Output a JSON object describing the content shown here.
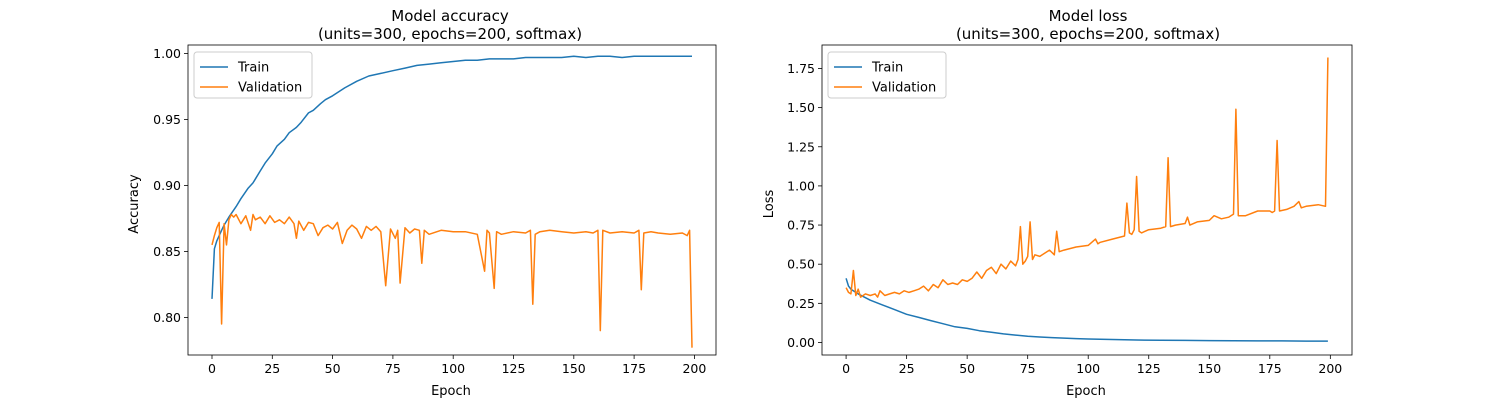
{
  "colors": {
    "train": "#1f77b4",
    "validation": "#ff7f0e",
    "legend_frame": "#cccccc"
  },
  "chart_data": [
    {
      "type": "line",
      "title_line1": "Model accuracy",
      "title_line2": "(units=300, epochs=200, softmax)",
      "xlabel": "Epoch",
      "ylabel": "Accuracy",
      "xlim": [
        -9.95,
        208.95
      ],
      "ylim": [
        0.7715,
        1.0065
      ],
      "xticks": [
        0,
        25,
        50,
        75,
        100,
        125,
        150,
        175,
        200
      ],
      "xtick_labels": [
        "0",
        "25",
        "50",
        "75",
        "100",
        "125",
        "150",
        "175",
        "200"
      ],
      "yticks": [
        0.8,
        0.85,
        0.9,
        0.95,
        1.0
      ],
      "ytick_labels": [
        "0.80",
        "0.85",
        "0.90",
        "0.95",
        "1.00"
      ],
      "legend": {
        "position": "upper-left",
        "entries": [
          "Train",
          "Validation"
        ]
      },
      "grid": false,
      "series": [
        {
          "name": "Train",
          "color": "#1f77b4",
          "x": [
            0,
            1,
            2,
            3,
            4,
            5,
            7,
            10,
            12,
            15,
            17,
            20,
            22,
            25,
            27,
            30,
            32,
            35,
            37,
            40,
            42,
            45,
            47,
            50,
            55,
            60,
            65,
            70,
            75,
            80,
            85,
            90,
            95,
            100,
            105,
            110,
            115,
            120,
            125,
            130,
            135,
            140,
            145,
            150,
            155,
            160,
            165,
            170,
            175,
            180,
            185,
            190,
            195,
            199
          ],
          "y": [
            0.814,
            0.852,
            0.858,
            0.862,
            0.866,
            0.87,
            0.876,
            0.884,
            0.89,
            0.898,
            0.902,
            0.911,
            0.917,
            0.924,
            0.93,
            0.935,
            0.94,
            0.944,
            0.948,
            0.955,
            0.957,
            0.962,
            0.965,
            0.968,
            0.974,
            0.979,
            0.983,
            0.985,
            0.987,
            0.989,
            0.991,
            0.992,
            0.993,
            0.994,
            0.995,
            0.995,
            0.996,
            0.996,
            0.996,
            0.997,
            0.997,
            0.997,
            0.997,
            0.998,
            0.997,
            0.998,
            0.998,
            0.997,
            0.998,
            0.998,
            0.998,
            0.998,
            0.998,
            0.998
          ]
        },
        {
          "name": "Validation",
          "color": "#ff7f0e",
          "x": [
            0,
            1,
            2,
            3,
            4,
            5,
            6,
            7,
            8,
            9,
            10,
            12,
            14,
            16,
            17,
            18,
            20,
            22,
            24,
            26,
            28,
            30,
            32,
            34,
            35,
            36,
            38,
            40,
            42,
            44,
            46,
            48,
            50,
            52,
            54,
            56,
            58,
            60,
            62,
            64,
            66,
            68,
            70,
            72,
            74,
            76,
            77,
            78,
            80,
            82,
            84,
            86,
            87,
            88,
            90,
            95,
            100,
            105,
            110,
            113,
            114,
            115,
            117,
            118,
            119,
            120,
            125,
            130,
            132,
            133,
            134,
            136,
            140,
            145,
            150,
            155,
            158,
            160,
            161,
            162,
            165,
            170,
            175,
            177,
            178,
            179,
            182,
            185,
            190,
            195,
            197,
            198,
            199
          ],
          "y": [
            0.855,
            0.862,
            0.868,
            0.872,
            0.795,
            0.871,
            0.855,
            0.874,
            0.878,
            0.876,
            0.878,
            0.871,
            0.877,
            0.866,
            0.878,
            0.874,
            0.876,
            0.871,
            0.877,
            0.872,
            0.874,
            0.871,
            0.876,
            0.871,
            0.86,
            0.873,
            0.866,
            0.872,
            0.871,
            0.862,
            0.868,
            0.87,
            0.867,
            0.872,
            0.856,
            0.866,
            0.87,
            0.867,
            0.86,
            0.869,
            0.866,
            0.869,
            0.865,
            0.824,
            0.867,
            0.86,
            0.866,
            0.826,
            0.868,
            0.864,
            0.867,
            0.866,
            0.841,
            0.866,
            0.863,
            0.866,
            0.865,
            0.865,
            0.863,
            0.835,
            0.866,
            0.864,
            0.822,
            0.865,
            0.864,
            0.863,
            0.865,
            0.864,
            0.866,
            0.81,
            0.863,
            0.865,
            0.866,
            0.865,
            0.864,
            0.865,
            0.864,
            0.866,
            0.79,
            0.866,
            0.864,
            0.865,
            0.864,
            0.866,
            0.821,
            0.864,
            0.865,
            0.864,
            0.863,
            0.864,
            0.862,
            0.866,
            0.777
          ]
        }
      ]
    },
    {
      "type": "line",
      "title_line1": "Model loss",
      "title_line2": "(units=300, epochs=200, softmax)",
      "xlabel": "Epoch",
      "ylabel": "Loss",
      "xlim": [
        -9.95,
        208.95
      ],
      "ylim": [
        -0.08,
        1.9
      ],
      "xticks": [
        0,
        25,
        50,
        75,
        100,
        125,
        150,
        175,
        200
      ],
      "xtick_labels": [
        "0",
        "25",
        "50",
        "75",
        "100",
        "125",
        "150",
        "175",
        "200"
      ],
      "yticks": [
        0.0,
        0.25,
        0.5,
        0.75,
        1.0,
        1.25,
        1.5,
        1.75
      ],
      "ytick_labels": [
        "0.00",
        "0.25",
        "0.50",
        "0.75",
        "1.00",
        "1.25",
        "1.50",
        "1.75"
      ],
      "legend": {
        "position": "upper-left",
        "entries": [
          "Train",
          "Validation"
        ]
      },
      "grid": false,
      "series": [
        {
          "name": "Train",
          "color": "#1f77b4",
          "x": [
            0,
            1,
            2,
            5,
            10,
            15,
            20,
            25,
            30,
            35,
            40,
            45,
            50,
            55,
            60,
            65,
            70,
            75,
            80,
            85,
            90,
            95,
            100,
            110,
            120,
            130,
            140,
            150,
            160,
            170,
            180,
            190,
            199
          ],
          "y": [
            0.41,
            0.36,
            0.34,
            0.31,
            0.27,
            0.24,
            0.21,
            0.18,
            0.16,
            0.14,
            0.12,
            0.1,
            0.09,
            0.075,
            0.065,
            0.055,
            0.047,
            0.04,
            0.035,
            0.031,
            0.028,
            0.025,
            0.022,
            0.019,
            0.016,
            0.014,
            0.013,
            0.012,
            0.011,
            0.01,
            0.01,
            0.009,
            0.009
          ]
        },
        {
          "name": "Validation",
          "color": "#ff7f0e",
          "x": [
            0,
            1,
            2,
            3,
            4,
            5,
            6,
            8,
            10,
            12,
            13,
            14,
            16,
            18,
            20,
            22,
            24,
            26,
            28,
            30,
            32,
            34,
            36,
            38,
            40,
            42,
            44,
            46,
            48,
            50,
            52,
            54,
            56,
            58,
            60,
            62,
            64,
            66,
            68,
            70,
            71,
            72,
            73,
            74,
            75,
            76,
            77,
            78,
            80,
            82,
            84,
            86,
            87,
            88,
            90,
            95,
            100,
            103,
            104,
            105,
            110,
            115,
            116,
            117,
            118,
            119,
            120,
            121,
            122,
            125,
            130,
            132,
            133,
            134,
            136,
            140,
            141,
            142,
            145,
            150,
            152,
            155,
            158,
            160,
            161,
            162,
            165,
            170,
            175,
            176,
            177,
            178,
            179,
            182,
            185,
            187,
            188,
            190,
            195,
            198,
            199
          ],
          "y": [
            0.35,
            0.32,
            0.31,
            0.46,
            0.3,
            0.34,
            0.29,
            0.31,
            0.3,
            0.31,
            0.29,
            0.33,
            0.3,
            0.31,
            0.32,
            0.31,
            0.33,
            0.32,
            0.33,
            0.34,
            0.36,
            0.33,
            0.37,
            0.35,
            0.4,
            0.37,
            0.38,
            0.37,
            0.4,
            0.39,
            0.41,
            0.45,
            0.41,
            0.46,
            0.48,
            0.44,
            0.5,
            0.47,
            0.52,
            0.49,
            0.53,
            0.74,
            0.5,
            0.52,
            0.55,
            0.77,
            0.53,
            0.56,
            0.55,
            0.57,
            0.59,
            0.56,
            0.71,
            0.58,
            0.59,
            0.61,
            0.62,
            0.66,
            0.63,
            0.64,
            0.66,
            0.68,
            0.89,
            0.7,
            0.69,
            0.72,
            1.06,
            0.71,
            0.7,
            0.72,
            0.73,
            0.74,
            1.18,
            0.74,
            0.75,
            0.76,
            0.8,
            0.75,
            0.77,
            0.78,
            0.81,
            0.79,
            0.8,
            0.82,
            1.49,
            0.81,
            0.81,
            0.84,
            0.84,
            0.83,
            0.84,
            1.29,
            0.84,
            0.85,
            0.87,
            0.9,
            0.86,
            0.87,
            0.88,
            0.87,
            1.82
          ]
        }
      ]
    }
  ]
}
